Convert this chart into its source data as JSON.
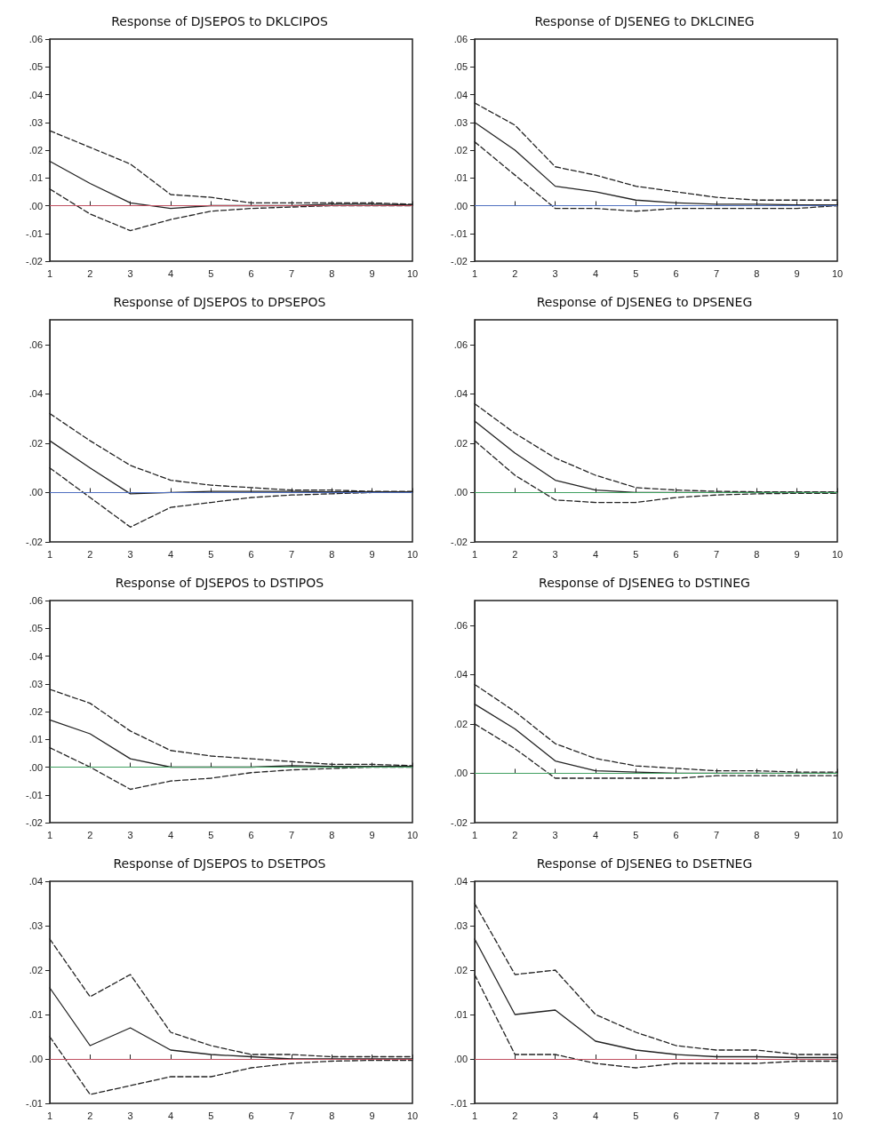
{
  "chart_data": [
    {
      "type": "line",
      "title": "Response of DJSEPOS to DKLCIPOS",
      "x": [
        1,
        2,
        3,
        4,
        5,
        6,
        7,
        8,
        9,
        10
      ],
      "xlim": [
        1,
        10
      ],
      "xticks": [
        1,
        2,
        3,
        4,
        5,
        6,
        7,
        8,
        9,
        10
      ],
      "ylim": [
        -0.02,
        0.06
      ],
      "yticks": [
        {
          "value": -0.02,
          "label": "-.02"
        },
        {
          "value": -0.01,
          "label": "-.01"
        },
        {
          "value": 0,
          "label": ".00"
        },
        {
          "value": 0.01,
          "label": ".01"
        },
        {
          "value": 0.02,
          "label": ".02"
        },
        {
          "value": 0.03,
          "label": ".03"
        },
        {
          "value": 0.04,
          "label": ".04"
        },
        {
          "value": 0.05,
          "label": ".05"
        },
        {
          "value": 0.06,
          "label": ".06"
        }
      ],
      "marker": "none",
      "ref_lines": [
        {
          "axis": "y",
          "value": 0,
          "color": "#c05060"
        }
      ],
      "series": [
        {
          "color": "#222222",
          "line_style": "solid",
          "values": [
            0.016,
            0.008,
            0.001,
            -0.001,
            0,
            0,
            0,
            0.0005,
            0.0005,
            0.0003
          ]
        },
        {
          "color": "#222222",
          "line_style": "dashed",
          "values": [
            0.027,
            0.021,
            0.015,
            0.004,
            0.003,
            0.001,
            0.001,
            0.001,
            0.001,
            0.0005
          ]
        },
        {
          "color": "#222222",
          "line_style": "dashed",
          "values": [
            0.006,
            -0.003,
            -0.009,
            -0.005,
            -0.002,
            -0.001,
            -0.0005,
            0,
            0,
            0
          ]
        }
      ]
    },
    {
      "type": "line",
      "title": "Response of DJSENEG to DKLCINEG",
      "x": [
        1,
        2,
        3,
        4,
        5,
        6,
        7,
        8,
        9,
        10
      ],
      "xlim": [
        1,
        10
      ],
      "xticks": [
        1,
        2,
        3,
        4,
        5,
        6,
        7,
        8,
        9,
        10
      ],
      "ylim": [
        -0.02,
        0.06
      ],
      "yticks": [
        {
          "value": -0.02,
          "label": "-.02"
        },
        {
          "value": -0.01,
          "label": "-.01"
        },
        {
          "value": 0,
          "label": ".00"
        },
        {
          "value": 0.01,
          "label": ".01"
        },
        {
          "value": 0.02,
          "label": ".02"
        },
        {
          "value": 0.03,
          "label": ".03"
        },
        {
          "value": 0.04,
          "label": ".04"
        },
        {
          "value": 0.05,
          "label": ".05"
        },
        {
          "value": 0.06,
          "label": ".06"
        }
      ],
      "marker": "none",
      "ref_lines": [
        {
          "axis": "y",
          "value": 0,
          "color": "#5070c0"
        }
      ],
      "series": [
        {
          "color": "#222222",
          "line_style": "solid",
          "values": [
            0.03,
            0.02,
            0.007,
            0.005,
            0.002,
            0.001,
            0.0005,
            0.0005,
            0.0003,
            0.0003
          ]
        },
        {
          "color": "#222222",
          "line_style": "dashed",
          "values": [
            0.037,
            0.029,
            0.014,
            0.011,
            0.007,
            0.005,
            0.003,
            0.002,
            0.002,
            0.002
          ]
        },
        {
          "color": "#222222",
          "line_style": "dashed",
          "values": [
            0.023,
            0.011,
            -0.001,
            -0.001,
            -0.002,
            -0.001,
            -0.001,
            -0.001,
            -0.001,
            0
          ]
        }
      ]
    },
    {
      "type": "line",
      "title": "Response of DJSEPOS to DPSEPOS",
      "x": [
        1,
        2,
        3,
        4,
        5,
        6,
        7,
        8,
        9,
        10
      ],
      "xlim": [
        1,
        10
      ],
      "xticks": [
        1,
        2,
        3,
        4,
        5,
        6,
        7,
        8,
        9,
        10
      ],
      "ylim": [
        -0.02,
        0.07
      ],
      "yticks": [
        {
          "value": -0.02,
          "label": "-.02"
        },
        {
          "value": 0,
          "label": ".00"
        },
        {
          "value": 0.02,
          "label": ".02"
        },
        {
          "value": 0.04,
          "label": ".04"
        },
        {
          "value": 0.06,
          "label": ".06"
        }
      ],
      "marker": "none",
      "ref_lines": [
        {
          "axis": "y",
          "value": 0,
          "color": "#5070c0"
        }
      ],
      "series": [
        {
          "color": "#222222",
          "line_style": "solid",
          "values": [
            0.021,
            0.01,
            -0.0005,
            0,
            0.0005,
            0.0005,
            0.0005,
            0.0003,
            0.0003,
            0.0003
          ]
        },
        {
          "color": "#222222",
          "line_style": "dashed",
          "values": [
            0.032,
            0.021,
            0.011,
            0.005,
            0.003,
            0.002,
            0.001,
            0.001,
            0.0005,
            0.0005
          ]
        },
        {
          "color": "#222222",
          "line_style": "dashed",
          "values": [
            0.01,
            -0.002,
            -0.014,
            -0.006,
            -0.004,
            -0.002,
            -0.001,
            -0.0005,
            0,
            0
          ]
        }
      ]
    },
    {
      "type": "line",
      "title": "Response of DJSENEG to DPSENEG",
      "x": [
        1,
        2,
        3,
        4,
        5,
        6,
        7,
        8,
        9,
        10
      ],
      "xlim": [
        1,
        10
      ],
      "xticks": [
        1,
        2,
        3,
        4,
        5,
        6,
        7,
        8,
        9,
        10
      ],
      "ylim": [
        -0.02,
        0.07
      ],
      "yticks": [
        {
          "value": -0.02,
          "label": "-.02"
        },
        {
          "value": 0,
          "label": ".00"
        },
        {
          "value": 0.02,
          "label": ".02"
        },
        {
          "value": 0.04,
          "label": ".04"
        },
        {
          "value": 0.06,
          "label": ".06"
        }
      ],
      "marker": "none",
      "ref_lines": [
        {
          "axis": "y",
          "value": 0,
          "color": "#40a060"
        }
      ],
      "series": [
        {
          "color": "#222222",
          "line_style": "solid",
          "values": [
            0.029,
            0.016,
            0.005,
            0.001,
            0,
            0,
            0,
            0,
            0,
            0
          ]
        },
        {
          "color": "#222222",
          "line_style": "dashed",
          "values": [
            0.036,
            0.024,
            0.014,
            0.007,
            0.002,
            0.001,
            0.0005,
            0.0003,
            0.0003,
            0.0003
          ]
        },
        {
          "color": "#222222",
          "line_style": "dashed",
          "values": [
            0.021,
            0.007,
            -0.003,
            -0.004,
            -0.004,
            -0.002,
            -0.001,
            -0.0005,
            -0.0003,
            -0.0003
          ]
        }
      ]
    },
    {
      "type": "line",
      "title": "Response of DJSEPOS to DSTIPOS",
      "x": [
        1,
        2,
        3,
        4,
        5,
        6,
        7,
        8,
        9,
        10
      ],
      "xlim": [
        1,
        10
      ],
      "xticks": [
        1,
        2,
        3,
        4,
        5,
        6,
        7,
        8,
        9,
        10
      ],
      "ylim": [
        -0.02,
        0.06
      ],
      "yticks": [
        {
          "value": -0.02,
          "label": "-.02"
        },
        {
          "value": -0.01,
          "label": "-.01"
        },
        {
          "value": 0,
          "label": ".00"
        },
        {
          "value": 0.01,
          "label": ".01"
        },
        {
          "value": 0.02,
          "label": ".02"
        },
        {
          "value": 0.03,
          "label": ".03"
        },
        {
          "value": 0.04,
          "label": ".04"
        },
        {
          "value": 0.05,
          "label": ".05"
        },
        {
          "value": 0.06,
          "label": ".06"
        }
      ],
      "marker": "none",
      "ref_lines": [
        {
          "axis": "y",
          "value": 0,
          "color": "#40a060"
        }
      ],
      "series": [
        {
          "color": "#222222",
          "line_style": "solid",
          "values": [
            0.017,
            0.012,
            0.003,
            0,
            0,
            0,
            0.0005,
            0.0003,
            0.0003,
            0.0003
          ]
        },
        {
          "color": "#222222",
          "line_style": "dashed",
          "values": [
            0.028,
            0.023,
            0.013,
            0.006,
            0.004,
            0.003,
            0.002,
            0.001,
            0.001,
            0.0005
          ]
        },
        {
          "color": "#222222",
          "line_style": "dashed",
          "values": [
            0.007,
            0,
            -0.008,
            -0.005,
            -0.004,
            -0.002,
            -0.001,
            -0.0005,
            0,
            0
          ]
        }
      ]
    },
    {
      "type": "line",
      "title": "Response of DJSENEG to DSTINEG",
      "x": [
        1,
        2,
        3,
        4,
        5,
        6,
        7,
        8,
        9,
        10
      ],
      "xlim": [
        1,
        10
      ],
      "xticks": [
        1,
        2,
        3,
        4,
        5,
        6,
        7,
        8,
        9,
        10
      ],
      "ylim": [
        -0.02,
        0.07
      ],
      "yticks": [
        {
          "value": -0.02,
          "label": "-.02"
        },
        {
          "value": 0,
          "label": ".00"
        },
        {
          "value": 0.02,
          "label": ".02"
        },
        {
          "value": 0.04,
          "label": ".04"
        },
        {
          "value": 0.06,
          "label": ".06"
        }
      ],
      "marker": "none",
      "ref_lines": [
        {
          "axis": "y",
          "value": 0,
          "color": "#40a060"
        }
      ],
      "series": [
        {
          "color": "#222222",
          "line_style": "solid",
          "values": [
            0.028,
            0.018,
            0.005,
            0.001,
            0.0005,
            0,
            0,
            0,
            0,
            0
          ]
        },
        {
          "color": "#222222",
          "line_style": "dashed",
          "values": [
            0.036,
            0.025,
            0.012,
            0.006,
            0.003,
            0.002,
            0.001,
            0.001,
            0.0005,
            0.0005
          ]
        },
        {
          "color": "#222222",
          "line_style": "dashed",
          "values": [
            0.02,
            0.01,
            -0.002,
            -0.002,
            -0.002,
            -0.002,
            -0.001,
            -0.001,
            -0.001,
            -0.001
          ]
        }
      ]
    },
    {
      "type": "line",
      "title": "Response of DJSEPOS to DSETPOS",
      "x": [
        1,
        2,
        3,
        4,
        5,
        6,
        7,
        8,
        9,
        10
      ],
      "xlim": [
        1,
        10
      ],
      "xticks": [
        1,
        2,
        3,
        4,
        5,
        6,
        7,
        8,
        9,
        10
      ],
      "ylim": [
        -0.01,
        0.04
      ],
      "yticks": [
        {
          "value": -0.01,
          "label": "-.01"
        },
        {
          "value": 0,
          "label": ".00"
        },
        {
          "value": 0.01,
          "label": ".01"
        },
        {
          "value": 0.02,
          "label": ".02"
        },
        {
          "value": 0.03,
          "label": ".03"
        },
        {
          "value": 0.04,
          "label": ".04"
        }
      ],
      "marker": "none",
      "ref_lines": [
        {
          "axis": "y",
          "value": 0,
          "color": "#c05060"
        }
      ],
      "series": [
        {
          "color": "#222222",
          "line_style": "solid",
          "values": [
            0.016,
            0.003,
            0.007,
            0.002,
            0.001,
            0.0005,
            0,
            0,
            0,
            0
          ]
        },
        {
          "color": "#222222",
          "line_style": "dashed",
          "values": [
            0.027,
            0.014,
            0.019,
            0.006,
            0.003,
            0.001,
            0.001,
            0.0005,
            0.0005,
            0.0005
          ]
        },
        {
          "color": "#222222",
          "line_style": "dashed",
          "values": [
            0.005,
            -0.008,
            -0.006,
            -0.004,
            -0.004,
            -0.002,
            -0.001,
            -0.0005,
            -0.0003,
            -0.0003
          ]
        }
      ]
    },
    {
      "type": "line",
      "title": "Response of DJSENEG to DSETNEG",
      "x": [
        1,
        2,
        3,
        4,
        5,
        6,
        7,
        8,
        9,
        10
      ],
      "xlim": [
        1,
        10
      ],
      "xticks": [
        1,
        2,
        3,
        4,
        5,
        6,
        7,
        8,
        9,
        10
      ],
      "ylim": [
        -0.01,
        0.04
      ],
      "yticks": [
        {
          "value": -0.01,
          "label": "-.01"
        },
        {
          "value": 0,
          "label": ".00"
        },
        {
          "value": 0.01,
          "label": ".01"
        },
        {
          "value": 0.02,
          "label": ".02"
        },
        {
          "value": 0.03,
          "label": ".03"
        },
        {
          "value": 0.04,
          "label": ".04"
        }
      ],
      "marker": "none",
      "ref_lines": [
        {
          "axis": "y",
          "value": 0,
          "color": "#c05060"
        }
      ],
      "series": [
        {
          "color": "#222222",
          "line_style": "solid",
          "values": [
            0.027,
            0.01,
            0.011,
            0.004,
            0.002,
            0.001,
            0.0005,
            0.0005,
            0.0003,
            0.0003
          ]
        },
        {
          "color": "#222222",
          "line_style": "dashed",
          "values": [
            0.035,
            0.019,
            0.02,
            0.01,
            0.006,
            0.003,
            0.002,
            0.002,
            0.001,
            0.001
          ]
        },
        {
          "color": "#222222",
          "line_style": "dashed",
          "values": [
            0.019,
            0.001,
            0.001,
            -0.001,
            -0.002,
            -0.001,
            -0.001,
            -0.001,
            -0.0005,
            -0.0005
          ]
        }
      ]
    }
  ]
}
